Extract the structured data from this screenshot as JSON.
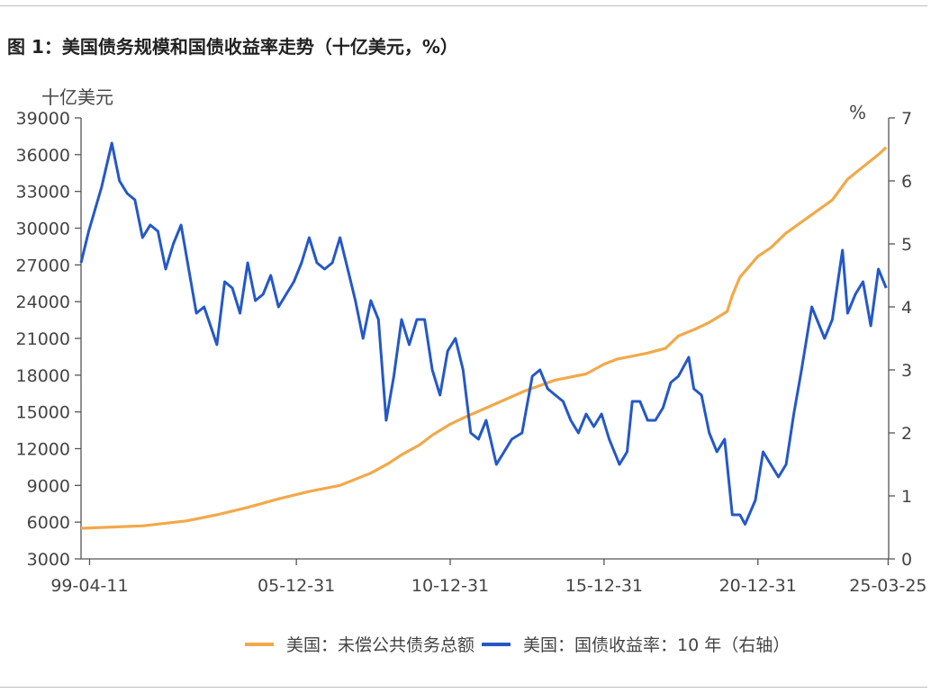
{
  "title": "图 1：美国债务规模和国债收益率走势（十亿美元，%）",
  "unit_left": "十亿美元",
  "unit_right": "%",
  "colors": {
    "debt": "#F2A94A",
    "yield": "#2458C8",
    "axis": "#555555"
  },
  "legend": {
    "debt": "美国：未偿公共债务总额",
    "yield": "美国：国债收益率：10 年（右轴）"
  },
  "chart_data": {
    "type": "line",
    "title": "图 1：美国债务规模和国债收益率走势（十亿美元，%）",
    "x_tick_labels": [
      "99-04-11",
      "05-12-31",
      "10-12-31",
      "15-12-31",
      "20-12-31",
      "25-03-25"
    ],
    "y_left": {
      "label": "十亿美元",
      "ticks": [
        "3000",
        "6000",
        "9000",
        "12000",
        "15000",
        "18000",
        "21000",
        "24000",
        "27000",
        "30000",
        "33000",
        "36000",
        "39000"
      ],
      "range": [
        3000,
        39000
      ]
    },
    "y_right": {
      "label": "%",
      "ticks": [
        "0",
        "1",
        "2",
        "3",
        "4",
        "5",
        "6",
        "7"
      ],
      "range": [
        0,
        7
      ]
    },
    "grid": false,
    "legend_position": "bottom",
    "x_range": [
      "1999-01-01",
      "2025-04-01"
    ],
    "series": [
      {
        "name": "美国：未偿公共债务总额",
        "axis": "left",
        "x": [
          "1999-01",
          "2001-01",
          "2002-06",
          "2003-06",
          "2004-06",
          "2005-06",
          "2006-06",
          "2007-06",
          "2008-06",
          "2009-01",
          "2009-06",
          "2010-01",
          "2010-06",
          "2011-01",
          "2011-06",
          "2012-06",
          "2013-06",
          "2014-06",
          "2015-06",
          "2016-01",
          "2016-06",
          "2017-06",
          "2018-01",
          "2018-06",
          "2019-01",
          "2019-06",
          "2020-01",
          "2020-03",
          "2020-06",
          "2021-01",
          "2021-06",
          "2021-12",
          "2022-06",
          "2022-12",
          "2023-06",
          "2023-12",
          "2024-06",
          "2024-12",
          "2025-03"
        ],
        "values": [
          5500,
          5700,
          6100,
          6600,
          7200,
          7900,
          8500,
          9000,
          10000,
          10800,
          11500,
          12300,
          13100,
          14000,
          14500,
          15600,
          16700,
          17600,
          18100,
          18900,
          19300,
          19800,
          20200,
          21200,
          21800,
          22300,
          23200,
          24500,
          26000,
          27700,
          28400,
          29600,
          30500,
          31400,
          32300,
          34000,
          35000,
          36000,
          36600
        ]
      },
      {
        "name": "美国：国债收益率：10 年（右轴）",
        "axis": "right",
        "x": [
          "1999-01",
          "1999-04",
          "1999-09",
          "2000-01",
          "2000-04",
          "2000-07",
          "2000-10",
          "2001-01",
          "2001-04",
          "2001-07",
          "2001-10",
          "2002-01",
          "2002-04",
          "2002-07",
          "2002-10",
          "2003-01",
          "2003-06",
          "2003-09",
          "2003-12",
          "2004-03",
          "2004-06",
          "2004-09",
          "2004-12",
          "2005-03",
          "2005-06",
          "2005-09",
          "2005-12",
          "2006-03",
          "2006-06",
          "2006-09",
          "2006-12",
          "2007-03",
          "2007-06",
          "2007-09",
          "2007-12",
          "2008-03",
          "2008-06",
          "2008-09",
          "2008-12",
          "2009-03",
          "2009-06",
          "2009-09",
          "2009-12",
          "2010-03",
          "2010-06",
          "2010-09",
          "2010-12",
          "2011-03",
          "2011-06",
          "2011-09",
          "2011-12",
          "2012-03",
          "2012-07",
          "2012-10",
          "2013-01",
          "2013-05",
          "2013-09",
          "2013-12",
          "2014-03",
          "2014-06",
          "2014-09",
          "2014-12",
          "2015-03",
          "2015-06",
          "2015-09",
          "2015-12",
          "2016-03",
          "2016-07",
          "2016-10",
          "2016-12",
          "2017-03",
          "2017-06",
          "2017-09",
          "2017-12",
          "2018-03",
          "2018-06",
          "2018-10",
          "2018-12",
          "2019-03",
          "2019-06",
          "2019-09",
          "2019-12",
          "2020-03",
          "2020-06",
          "2020-08",
          "2020-12",
          "2021-03",
          "2021-06",
          "2021-09",
          "2021-12",
          "2022-03",
          "2022-06",
          "2022-10",
          "2022-12",
          "2023-03",
          "2023-06",
          "2023-10",
          "2023-12",
          "2024-03",
          "2024-06",
          "2024-09",
          "2024-12",
          "2025-03"
        ],
        "values": [
          4.7,
          5.2,
          5.9,
          6.6,
          6.0,
          5.8,
          5.7,
          5.1,
          5.3,
          5.2,
          4.6,
          5.0,
          5.3,
          4.6,
          3.9,
          4.0,
          3.4,
          4.4,
          4.3,
          3.9,
          4.7,
          4.1,
          4.2,
          4.5,
          4.0,
          4.2,
          4.4,
          4.7,
          5.1,
          4.7,
          4.6,
          4.7,
          5.1,
          4.6,
          4.1,
          3.5,
          4.1,
          3.8,
          2.2,
          2.9,
          3.8,
          3.4,
          3.8,
          3.8,
          3.0,
          2.6,
          3.3,
          3.5,
          3.0,
          2.0,
          1.9,
          2.2,
          1.5,
          1.7,
          1.9,
          2.0,
          2.9,
          3.0,
          2.7,
          2.6,
          2.5,
          2.2,
          2.0,
          2.3,
          2.1,
          2.3,
          1.9,
          1.5,
          1.7,
          2.5,
          2.5,
          2.2,
          2.2,
          2.4,
          2.8,
          2.9,
          3.2,
          2.7,
          2.6,
          2.0,
          1.7,
          1.9,
          0.7,
          0.7,
          0.55,
          0.93,
          1.7,
          1.5,
          1.3,
          1.5,
          2.3,
          3.0,
          4.0,
          3.8,
          3.5,
          3.8,
          4.9,
          3.9,
          4.2,
          4.4,
          3.7,
          4.6,
          4.3
        ]
      }
    ]
  }
}
